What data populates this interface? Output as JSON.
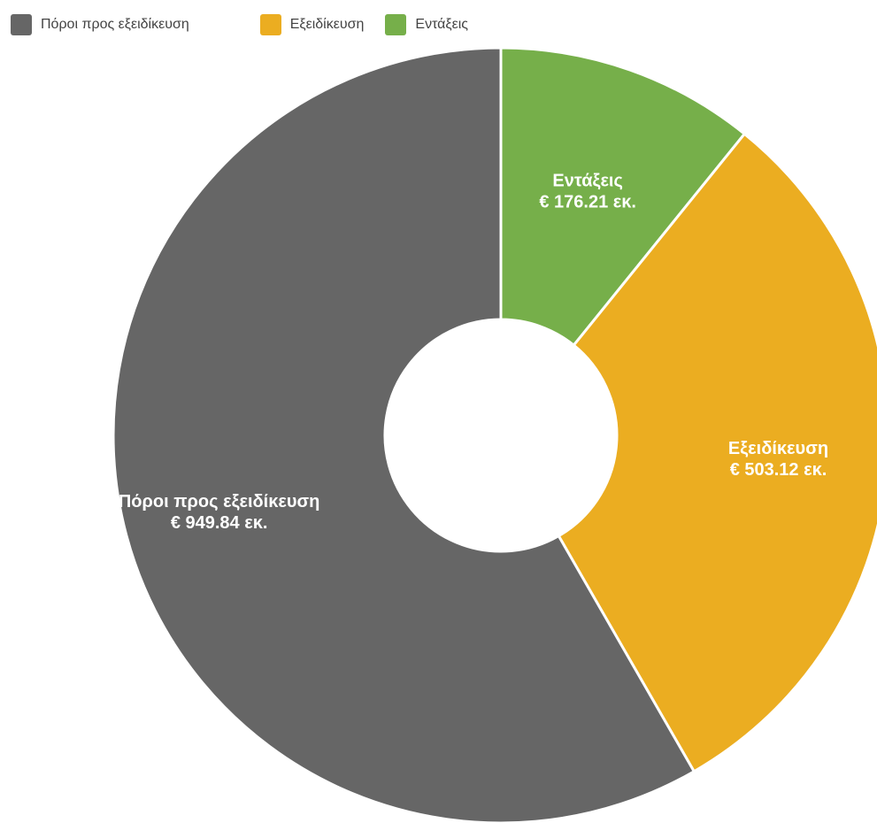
{
  "chart_data": {
    "type": "pie",
    "donut": true,
    "legend_position": "top-left",
    "slices": [
      {
        "name": "Εντάξεις",
        "value": 176.21,
        "value_label": "€ 176.21 εκ.",
        "color": "#76AF4A"
      },
      {
        "name": "Εξειδίκευση",
        "value": 503.12,
        "value_label": "€ 503.12 εκ.",
        "color": "#EBAD21"
      },
      {
        "name": "Πόροι προς εξειδίκευση",
        "value": 949.84,
        "value_label": "€ 949.84 εκ.",
        "color": "#666666"
      }
    ],
    "legend": [
      {
        "label": "Πόροι προς εξειδίκευση",
        "color": "#666666"
      },
      {
        "label": "Εξειδίκευση",
        "color": "#EBAD21"
      },
      {
        "label": "Εντάξεις",
        "color": "#76AF4A"
      }
    ]
  }
}
